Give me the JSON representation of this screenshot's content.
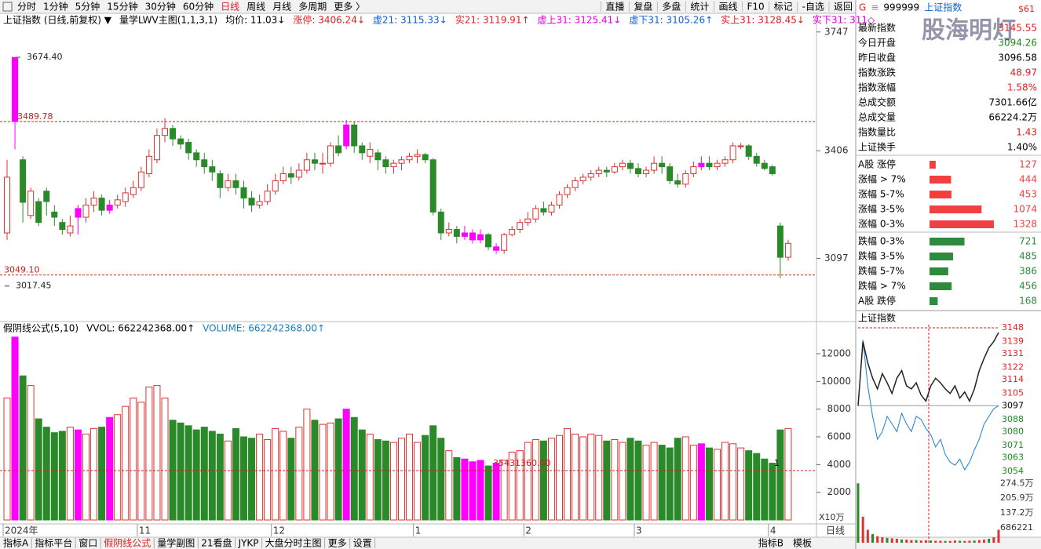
{
  "toolbar": {
    "left": [
      "分时",
      "1分钟",
      "5分钟",
      "15分钟",
      "30分钟",
      "60分钟",
      "日线",
      "周线",
      "月线",
      "多周期",
      "更多 〉"
    ],
    "selected_index": 6,
    "right": [
      "直播",
      "复盘",
      "多盘",
      "统计",
      "画线",
      "F10",
      "标记",
      "-自选",
      "返回"
    ]
  },
  "main_chart": {
    "header": [
      {
        "text": "上证指数 (日线,前复权) ▼",
        "color": "#000000"
      },
      {
        "text": "量学LWV主图(1,1,3,1)",
        "color": "#000000"
      },
      {
        "text": "均价: 11.03↓",
        "color": "#000000"
      },
      {
        "text": "涨停: 3406.24↓",
        "color": "#e02020"
      },
      {
        "text": "虚21: 3115.33↓",
        "color": "#1060d0"
      },
      {
        "text": "实21: 3119.91↑",
        "color": "#e02020"
      },
      {
        "text": "虚上31: 3125.41↓",
        "color": "#e000e0"
      },
      {
        "text": "虚下31: 3105.26↑",
        "color": "#1060d0"
      },
      {
        "text": "实上31: 3128.45↓",
        "color": "#e02020"
      },
      {
        "text": "实下31: 311◇",
        "color": "#e000e0"
      }
    ],
    "ylim": [
      2920,
      3760
    ],
    "yticks": [
      3097,
      3406,
      3747
    ],
    "dates": [
      "2024年",
      null,
      null,
      null,
      null,
      null,
      null,
      null,
      null,
      null,
      null,
      null,
      null,
      null,
      null,
      null,
      null,
      "11",
      null,
      null,
      null,
      null,
      null,
      null,
      null,
      null,
      null,
      null,
      null,
      null,
      null,
      null,
      null,
      null,
      "12",
      null,
      null,
      null,
      null,
      null,
      null,
      null,
      null,
      null,
      null,
      null,
      null,
      null,
      null,
      null,
      null,
      null,
      "1",
      null,
      null,
      null,
      null,
      null,
      null,
      null,
      null,
      null,
      null,
      null,
      null,
      null,
      "2",
      null,
      null,
      null,
      null,
      null,
      null,
      null,
      null,
      null,
      null,
      null,
      null,
      null,
      "3",
      null,
      null,
      null,
      null,
      null,
      null,
      null,
      null,
      null,
      null,
      null,
      null,
      null,
      null,
      null,
      null,
      "4",
      null,
      null
    ],
    "open": [
      3170,
      3490,
      3380,
      3220,
      3260,
      3290,
      3230,
      3200,
      3170,
      3240,
      3215,
      3250,
      3270,
      3235,
      3250,
      3260,
      3280,
      3300,
      3340,
      3380,
      3450,
      3470,
      3440,
      3430,
      3400,
      3380,
      3360,
      3340,
      3300,
      3320,
      3300,
      3270,
      3250,
      3260,
      3290,
      3320,
      3340,
      3330,
      3350,
      3380,
      3370,
      3370,
      3420,
      3420,
      3480,
      3420,
      3390,
      3400,
      3380,
      3360,
      3370,
      3380,
      3390,
      3395,
      3380,
      3230,
      3170,
      3180,
      3160,
      3170,
      3150,
      3165,
      3130,
      3120,
      3165,
      3180,
      3200,
      3210,
      3240,
      3230,
      3250,
      3280,
      3300,
      3320,
      3330,
      3340,
      3350,
      3345,
      3360,
      3370,
      3355,
      3340,
      3350,
      3370,
      3360,
      3320,
      3310,
      3340,
      3360,
      3370,
      3360,
      3370,
      3380,
      3420,
      3420,
      3390,
      3370,
      3360,
      3190,
      3100
    ],
    "high": [
      3380,
      3674,
      3390,
      3300,
      3270,
      3300,
      3250,
      3210,
      3220,
      3250,
      3270,
      3290,
      3280,
      3265,
      3280,
      3300,
      3320,
      3360,
      3410,
      3470,
      3500,
      3480,
      3450,
      3440,
      3410,
      3400,
      3380,
      3350,
      3340,
      3340,
      3320,
      3290,
      3280,
      3310,
      3340,
      3360,
      3360,
      3370,
      3400,
      3400,
      3400,
      3430,
      3450,
      3494,
      3490,
      3430,
      3430,
      3410,
      3390,
      3380,
      3390,
      3400,
      3410,
      3400,
      3385,
      3240,
      3200,
      3190,
      3190,
      3180,
      3180,
      3170,
      3140,
      3170,
      3190,
      3210,
      3230,
      3250,
      3260,
      3260,
      3290,
      3310,
      3330,
      3340,
      3350,
      3360,
      3360,
      3370,
      3380,
      3380,
      3370,
      3360,
      3390,
      3390,
      3370,
      3340,
      3350,
      3375,
      3390,
      3390,
      3380,
      3390,
      3430,
      3428,
      3425,
      3400,
      3380,
      3365,
      3200,
      3150
    ],
    "low": [
      3150,
      3410,
      3200,
      3210,
      3190,
      3220,
      3190,
      3165,
      3160,
      3165,
      3200,
      3230,
      3220,
      3225,
      3240,
      3245,
      3270,
      3290,
      3330,
      3370,
      3430,
      3420,
      3410,
      3380,
      3360,
      3340,
      3320,
      3270,
      3290,
      3280,
      3240,
      3230,
      3240,
      3250,
      3280,
      3310,
      3310,
      3320,
      3340,
      3350,
      3340,
      3360,
      3390,
      3410,
      3400,
      3380,
      3370,
      3350,
      3340,
      3340,
      3350,
      3370,
      3370,
      3370,
      3220,
      3150,
      3160,
      3140,
      3150,
      3140,
      3140,
      3120,
      3110,
      3110,
      3160,
      3170,
      3190,
      3200,
      3220,
      3220,
      3240,
      3270,
      3290,
      3310,
      3320,
      3330,
      3330,
      3340,
      3350,
      3340,
      3330,
      3330,
      3340,
      3340,
      3310,
      3300,
      3300,
      3330,
      3350,
      3350,
      3350,
      3360,
      3370,
      3410,
      3380,
      3360,
      3350,
      3335,
      3040,
      3090
    ],
    "close": [
      3330,
      3674,
      3258,
      3290,
      3200,
      3260,
      3215,
      3180,
      3190,
      3215,
      3250,
      3270,
      3235,
      3250,
      3265,
      3285,
      3300,
      3345,
      3390,
      3450,
      3470,
      3440,
      3425,
      3400,
      3380,
      3360,
      3345,
      3300,
      3320,
      3300,
      3270,
      3250,
      3260,
      3290,
      3320,
      3340,
      3330,
      3350,
      3380,
      3370,
      3370,
      3420,
      3400,
      3480,
      3420,
      3400,
      3410,
      3380,
      3360,
      3370,
      3380,
      3390,
      3395,
      3380,
      3230,
      3170,
      3180,
      3160,
      3170,
      3150,
      3165,
      3130,
      3120,
      3165,
      3180,
      3200,
      3210,
      3240,
      3230,
      3250,
      3280,
      3300,
      3320,
      3330,
      3340,
      3350,
      3345,
      3360,
      3370,
      3355,
      3340,
      3350,
      3370,
      3360,
      3320,
      3310,
      3340,
      3360,
      3370,
      3360,
      3370,
      3380,
      3420,
      3420,
      3390,
      3370,
      3355,
      3340,
      3100,
      3140
    ],
    "magenta": [
      1,
      9,
      13,
      43,
      58,
      59,
      60,
      62,
      88
    ],
    "up_color": "#e03030",
    "down_color": "#2a8a2a",
    "magenta_color": "#ff00ff",
    "annotations": [
      {
        "value": 3674.4,
        "label": "3674.40",
        "dashed_line": false
      },
      {
        "value": 3489.78,
        "label": "3489.78",
        "dashed_line": true
      },
      {
        "value": 3049.1,
        "label": "3049.10",
        "dashed_line": true
      },
      {
        "value": 3017.45,
        "label": "3017.45",
        "dashed_line": false
      }
    ]
  },
  "volume_chart": {
    "header": [
      {
        "text": "假阴线公式(5,10)",
        "color": "#000000"
      },
      {
        "text": "VVOL: 662242368.00↑",
        "color": "#000000"
      },
      {
        "text": "VOLUME: 662242368.00↑",
        "color": "#1a7fc0"
      }
    ],
    "ylim": [
      0,
      13300
    ],
    "yticks": [
      2000,
      4000,
      6000,
      8000,
      10000,
      12000
    ],
    "unit_label": "X10万",
    "line_label": "35431360.00",
    "marker": "1",
    "values": [
      8800,
      13200,
      10400,
      9700,
      7300,
      6700,
      6300,
      6400,
      6700,
      6500,
      6200,
      6600,
      6700,
      7400,
      7600,
      8200,
      8800,
      8500,
      9600,
      9700,
      8800,
      7200,
      7000,
      6800,
      6500,
      6700,
      6400,
      6200,
      5700,
      6600,
      6000,
      5900,
      6200,
      5800,
      6600,
      6400,
      5900,
      6700,
      8000,
      7200,
      6900,
      7000,
      7300,
      8000,
      7400,
      6500,
      6200,
      5800,
      5700,
      5600,
      5900,
      6200,
      5600,
      6100,
      6800,
      5900,
      5000,
      4500,
      4400,
      4200,
      4300,
      3900,
      4100,
      4300,
      4900,
      5000,
      5600,
      5800,
      5700,
      5900,
      6100,
      6600,
      6200,
      6000,
      6200,
      6100,
      5700,
      5800,
      5600,
      5900,
      5700,
      5400,
      5600,
      5400,
      5200,
      5900,
      6000,
      5400,
      5500,
      5200,
      5100,
      5600,
      5500,
      5200,
      5000,
      4800,
      4400,
      4100,
      6500,
      6600
    ]
  },
  "quote": {
    "header": [
      {
        "text": "G",
        "color": "#e02020"
      },
      {
        "text": "≡",
        "color": "#888888"
      },
      {
        "text": "999999",
        "color": "#000000"
      },
      {
        "text": "上证指数",
        "color": "#1060d0"
      }
    ],
    "header_right": "$61",
    "watermark": "股海明灯",
    "rows": [
      {
        "label": "最新指数",
        "value": "3145.55",
        "color": "#e02020"
      },
      {
        "label": "今日开盘",
        "value": "3094.26",
        "color": "#1a8a1a"
      },
      {
        "label": "昨日收盘",
        "value": "3096.58",
        "color": "#000000"
      },
      {
        "label": "指数涨跌",
        "value": "48.97",
        "color": "#e02020"
      },
      {
        "label": "指数涨幅",
        "value": "1.58%",
        "color": "#e02020"
      },
      {
        "label": "总成交额",
        "value": "7301.66亿",
        "color": "#000000"
      },
      {
        "label": "总成交量",
        "value": "66224.2万",
        "color": "#000000"
      },
      {
        "label": "指数量比",
        "value": "1.43",
        "color": "#e02020"
      },
      {
        "label": "上证换手",
        "value": "1.40%",
        "color": "#000000"
      }
    ],
    "breadth": [
      {
        "label": "A股 涨停",
        "value": 127
      },
      {
        "label": "涨幅 > 7%",
        "value": 444
      },
      {
        "label": "涨幅 5-7%",
        "value": 453
      },
      {
        "label": "涨幅 3-5%",
        "value": 1074
      },
      {
        "label": "涨幅 0-3%",
        "value": 1328
      },
      {
        "label": "跌幅 0-3%",
        "value": 721
      },
      {
        "label": "跌幅 3-5%",
        "value": 485
      },
      {
        "label": "跌幅 5-7%",
        "value": 386
      },
      {
        "label": "跌幅 > 7%",
        "value": 456
      },
      {
        "label": "A股 跌停",
        "value": 168
      }
    ]
  },
  "mini_chart": {
    "title": "上证指数",
    "ylim": [
      3054,
      3148
    ],
    "yticks": [
      3148,
      3139,
      3131,
      3122,
      3114,
      3105,
      3097,
      3088,
      3080,
      3071,
      3063,
      3054
    ],
    "price": [
      3097,
      3139,
      3125,
      3115,
      3108,
      3118,
      3112,
      3105,
      3115,
      3120,
      3110,
      3108,
      3112,
      3104,
      3100,
      3110,
      3115,
      3112,
      3108,
      3105,
      3110,
      3102,
      3106,
      3100,
      3108,
      3120,
      3128,
      3135,
      3139,
      3145
    ],
    "average": [
      3097,
      3140,
      3110,
      3090,
      3075,
      3080,
      3090,
      3085,
      3080,
      3092,
      3085,
      3080,
      3090,
      3088,
      3082,
      3078,
      3070,
      3075,
      3065,
      3060,
      3058,
      3062,
      3055,
      3060,
      3068,
      3075,
      3085,
      3090,
      3095,
      3097
    ],
    "vol_ylim": [
      0,
      290
    ],
    "vol_ticks": [
      {
        "value": 274.5,
        "label": "274.5万"
      },
      {
        "value": 205.9,
        "label": "205.9万"
      },
      {
        "value": 137.2,
        "label": "137.2万"
      },
      {
        "value": 68.6221,
        "label": "686221"
      }
    ],
    "volume": [
      274.5,
      120,
      60,
      40,
      30,
      25,
      22,
      20,
      18,
      15,
      14,
      12,
      12,
      10,
      11,
      10,
      9,
      9,
      8,
      8,
      10,
      9,
      8,
      9,
      10,
      12,
      14,
      18,
      25,
      60
    ]
  },
  "bottom_bar": {
    "left": [
      "指标A",
      "指标平台",
      "窗口",
      "假阴线公式",
      "量学副图",
      "21看盘",
      "JYKP",
      "大盘分时主图",
      "更多",
      "设置"
    ],
    "selected_index": 3,
    "right": [
      "指标B",
      "模板"
    ],
    "period_label": "日线"
  }
}
